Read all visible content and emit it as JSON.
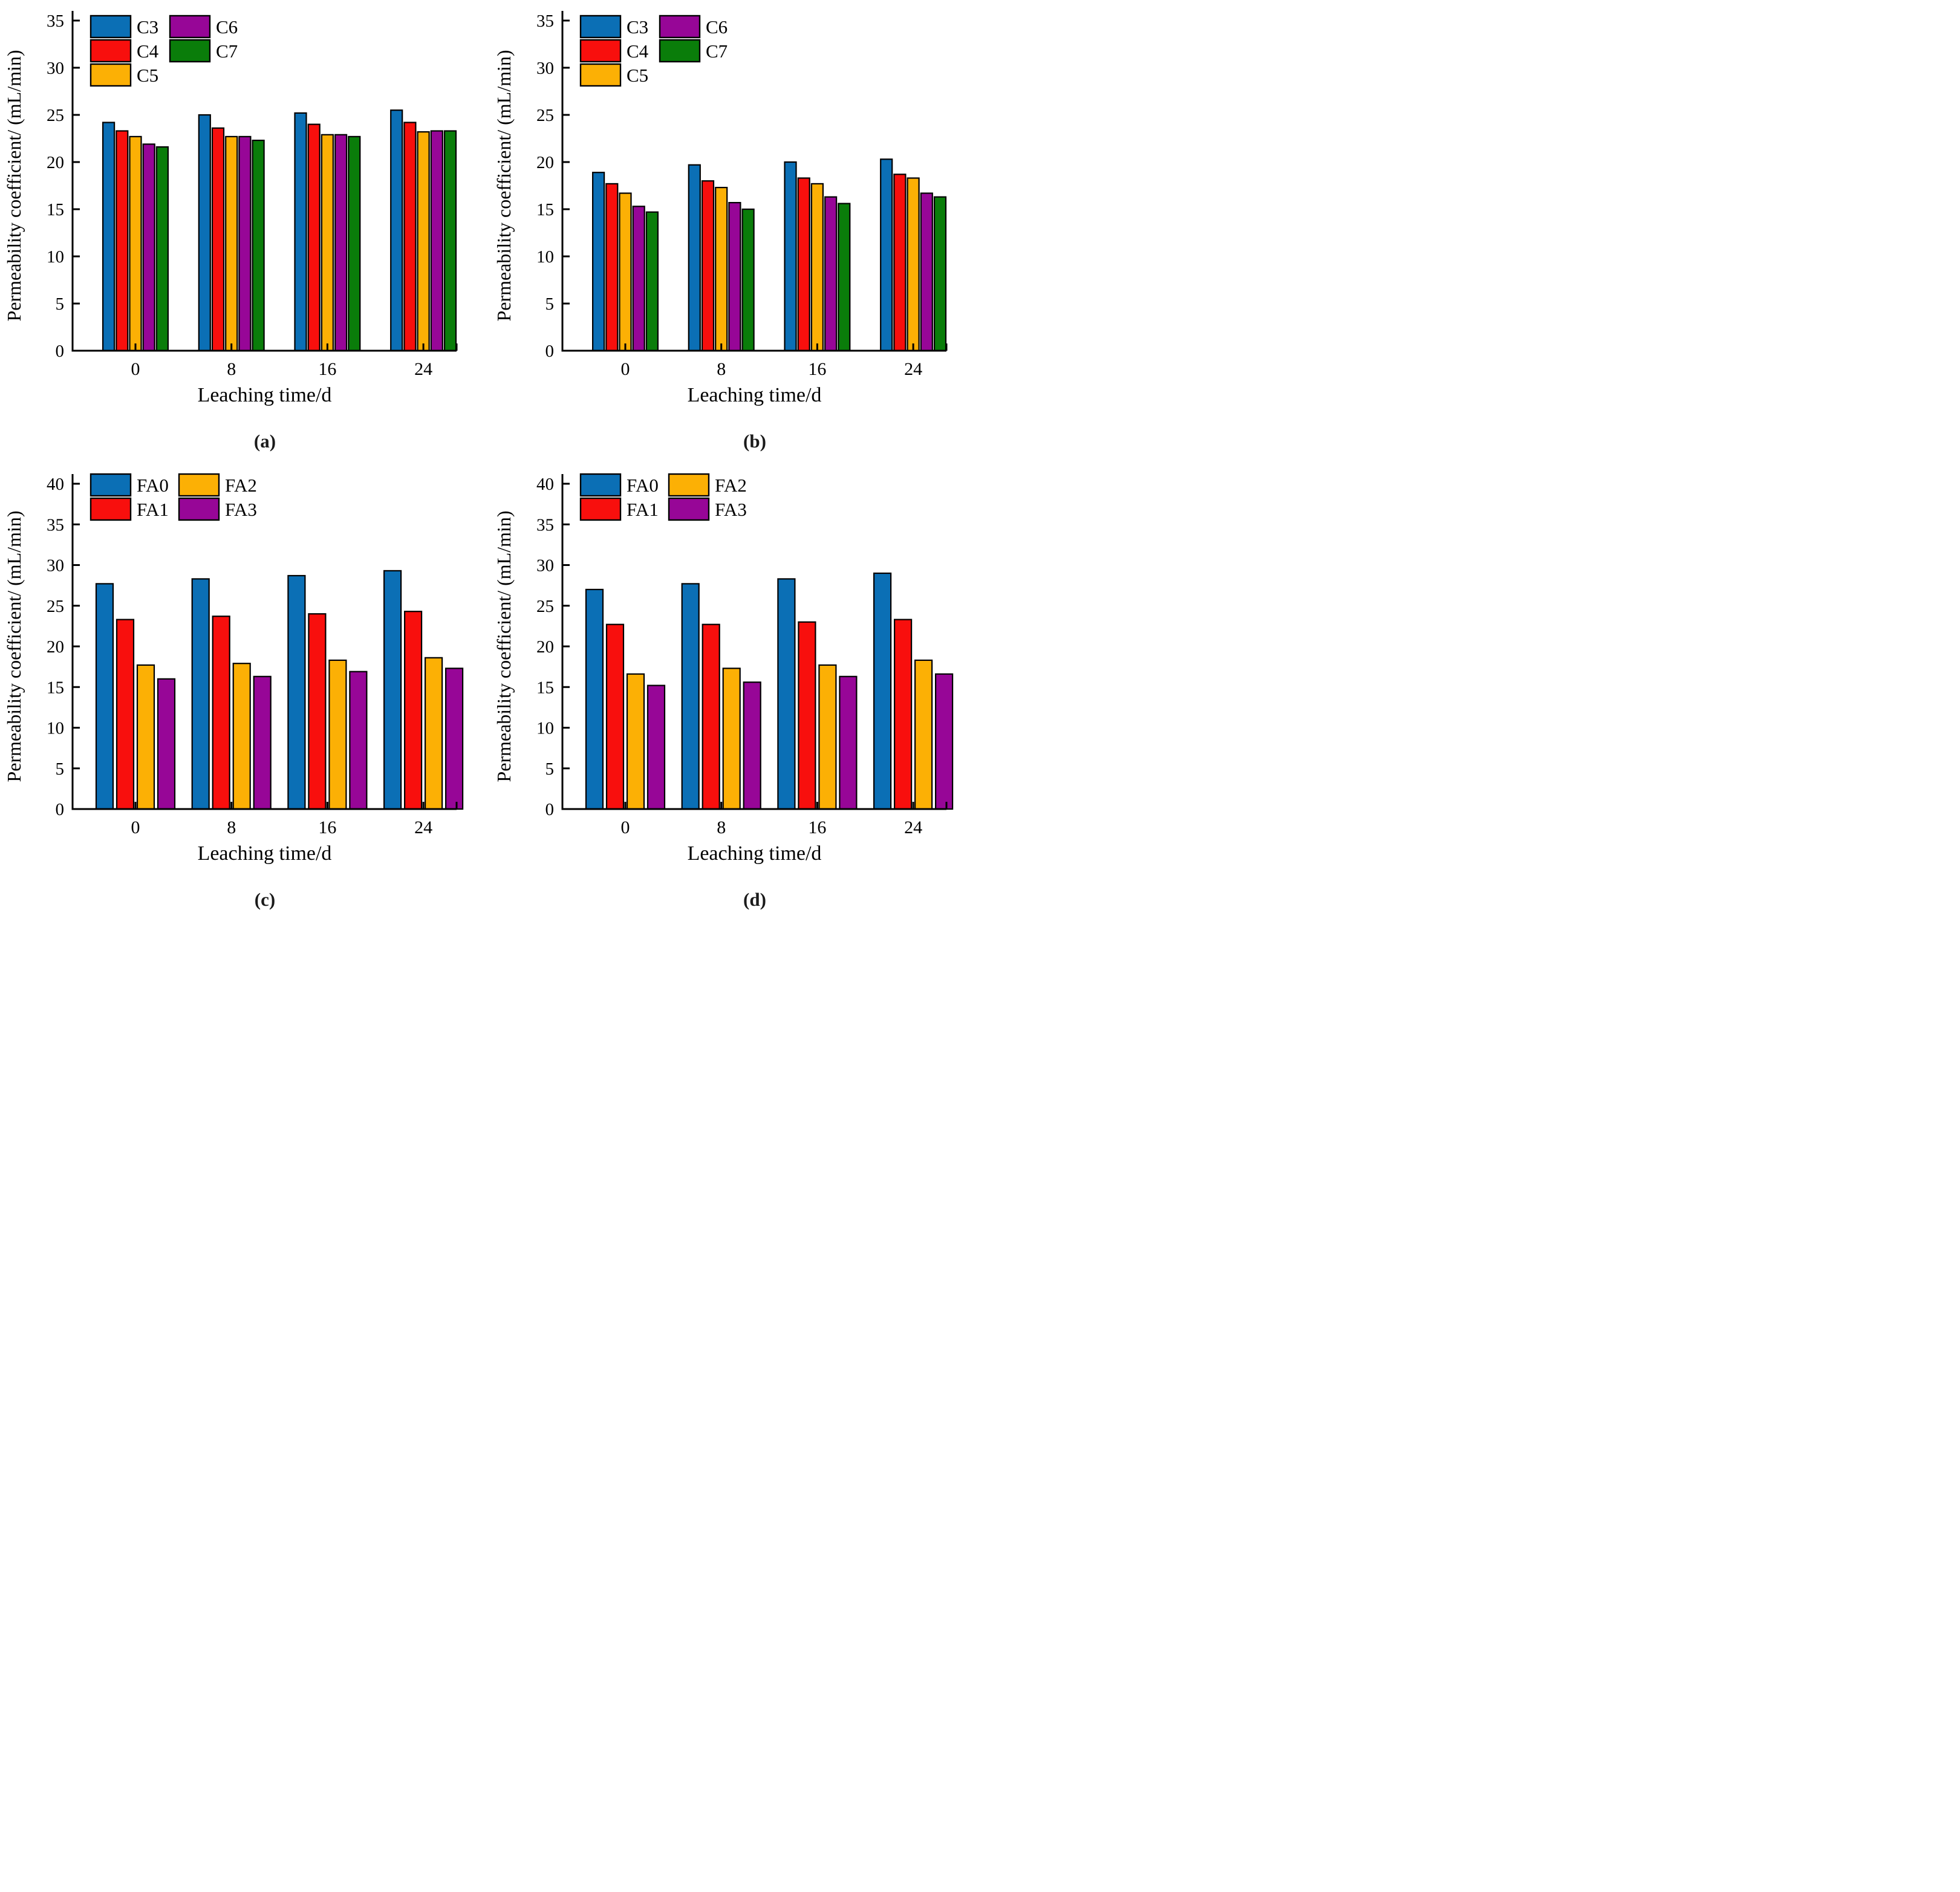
{
  "figure": {
    "background": "#ffffff",
    "axis_color": "#000000",
    "bar_border_color": "#000000"
  },
  "chart_data": [
    {
      "panel": "a",
      "caption": "(a)",
      "type": "bar",
      "title": "",
      "xlabel": "Leaching time/d",
      "ylabel": "Permeability coefficient/ (mL/min)",
      "categories": [
        "0",
        "8",
        "16",
        "24"
      ],
      "ylim": [
        0,
        35
      ],
      "ytick_step": 5,
      "yticks": [
        "0",
        "5",
        "10",
        "15",
        "20",
        "25",
        "30",
        "35"
      ],
      "grid": false,
      "legend_position": "top-left-inside",
      "series": [
        {
          "name": "C3",
          "color": "#0b6fb5",
          "values": [
            24.2,
            25.0,
            25.2,
            25.5
          ]
        },
        {
          "name": "C4",
          "color": "#f80f0d",
          "values": [
            23.3,
            23.6,
            24.0,
            24.2
          ]
        },
        {
          "name": "C5",
          "color": "#fcb005",
          "values": [
            22.7,
            22.7,
            22.9,
            23.2
          ]
        },
        {
          "name": "C6",
          "color": "#970697",
          "values": [
            21.9,
            22.7,
            22.9,
            23.3
          ]
        },
        {
          "name": "C7",
          "color": "#0a7d0a",
          "values": [
            21.6,
            22.3,
            22.7,
            23.3
          ]
        }
      ]
    },
    {
      "panel": "b",
      "caption": "(b)",
      "type": "bar",
      "title": "",
      "xlabel": "Leaching time/d",
      "ylabel": "Permeability coefficient/ (mL/min)",
      "categories": [
        "0",
        "8",
        "16",
        "24"
      ],
      "ylim": [
        0,
        35
      ],
      "ytick_step": 5,
      "yticks": [
        "0",
        "5",
        "10",
        "15",
        "20",
        "25",
        "30",
        "35"
      ],
      "grid": false,
      "legend_position": "top-left-inside",
      "series": [
        {
          "name": "C3",
          "color": "#0b6fb5",
          "values": [
            18.9,
            19.7,
            20.0,
            20.3
          ]
        },
        {
          "name": "C4",
          "color": "#f80f0d",
          "values": [
            17.7,
            18.0,
            18.3,
            18.7
          ]
        },
        {
          "name": "C5",
          "color": "#fcb005",
          "values": [
            16.7,
            17.3,
            17.7,
            18.3
          ]
        },
        {
          "name": "C6",
          "color": "#970697",
          "values": [
            15.3,
            15.7,
            16.3,
            16.7
          ]
        },
        {
          "name": "C7",
          "color": "#0a7d0a",
          "values": [
            14.7,
            15.0,
            15.6,
            16.3
          ]
        }
      ]
    },
    {
      "panel": "c",
      "caption": "(c)",
      "type": "bar",
      "title": "",
      "xlabel": "Leaching time/d",
      "ylabel": "Permeability coefficient/ (mL/min)",
      "categories": [
        "0",
        "8",
        "16",
        "24"
      ],
      "ylim": [
        0,
        40
      ],
      "ytick_step": 5,
      "yticks": [
        "0",
        "5",
        "10",
        "15",
        "20",
        "25",
        "30",
        "35",
        "40"
      ],
      "grid": false,
      "legend_position": "top-left-inside",
      "series": [
        {
          "name": "FA0",
          "color": "#0b6fb5",
          "values": [
            27.7,
            28.3,
            28.7,
            29.3
          ]
        },
        {
          "name": "FA1",
          "color": "#f80f0d",
          "values": [
            23.3,
            23.7,
            24.0,
            24.3
          ]
        },
        {
          "name": "FA2",
          "color": "#fcb005",
          "values": [
            17.7,
            17.9,
            18.3,
            18.6
          ]
        },
        {
          "name": "FA3",
          "color": "#970697",
          "values": [
            16.0,
            16.3,
            16.9,
            17.3
          ]
        }
      ]
    },
    {
      "panel": "d",
      "caption": "(d)",
      "type": "bar",
      "title": "",
      "xlabel": "Leaching time/d",
      "ylabel": "Permeability coefficient/ (mL/min)",
      "categories": [
        "0",
        "8",
        "16",
        "24"
      ],
      "ylim": [
        0,
        40
      ],
      "ytick_step": 5,
      "yticks": [
        "0",
        "5",
        "10",
        "15",
        "20",
        "25",
        "30",
        "35",
        "40"
      ],
      "grid": false,
      "legend_position": "top-left-inside",
      "series": [
        {
          "name": "FA0",
          "color": "#0b6fb5",
          "values": [
            27.0,
            27.7,
            28.3,
            29.0
          ]
        },
        {
          "name": "FA1",
          "color": "#f80f0d",
          "values": [
            22.7,
            22.7,
            23.0,
            23.3
          ]
        },
        {
          "name": "FA2",
          "color": "#fcb005",
          "values": [
            16.6,
            17.3,
            17.7,
            18.3
          ]
        },
        {
          "name": "FA3",
          "color": "#970697",
          "values": [
            15.2,
            15.6,
            16.3,
            16.6
          ]
        }
      ]
    }
  ]
}
